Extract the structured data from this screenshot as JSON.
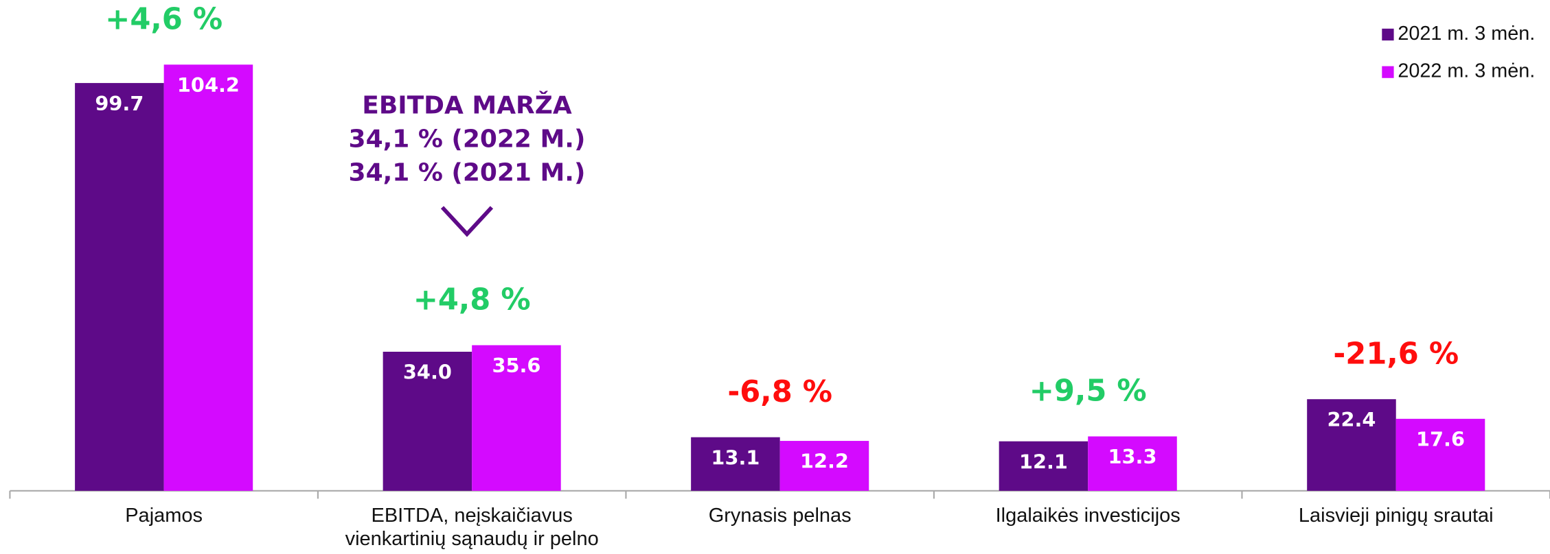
{
  "chart_data": {
    "type": "bar",
    "categories": [
      "Pajamos",
      "EBITDA, neįskaičiavus vienkartinių sąnaudų ir pelno",
      "Grynasis pelnas",
      "Ilgalaikės investicijos",
      "Laisvieji pinigų srautai"
    ],
    "series": [
      {
        "name": "2021 m. 3 mėn.",
        "color": "#5e0a88",
        "values": [
          99.7,
          34.0,
          13.1,
          12.1,
          22.4
        ],
        "value_labels": [
          "99.7",
          "34.0",
          "13.1",
          "12.1",
          "22.4"
        ]
      },
      {
        "name": "2022 m. 3 mėn.",
        "color": "#d40aff",
        "values": [
          104.2,
          35.6,
          12.2,
          13.3,
          17.6
        ],
        "value_labels": [
          "104.2",
          "35.6",
          "12.2",
          "13.3",
          "17.6"
        ]
      }
    ],
    "changes": [
      {
        "text": "+4,6 %",
        "color": "#22cc66"
      },
      {
        "text": "+4,8 %",
        "color": "#22cc66"
      },
      {
        "text": "-6,8 %",
        "color": "#ff0d0d"
      },
      {
        "text": "+9,5 %",
        "color": "#22cc66"
      },
      {
        "text": "-21,6 %",
        "color": "#ff0d0d"
      }
    ],
    "annotation": {
      "lines": [
        "EBITDA MARŽA",
        "34,1 % (2022 M.)",
        "34,1 % (2021 M.)"
      ],
      "color": "#5e0a88"
    },
    "ylim": [
      0,
      120
    ],
    "legend": "top-right"
  }
}
